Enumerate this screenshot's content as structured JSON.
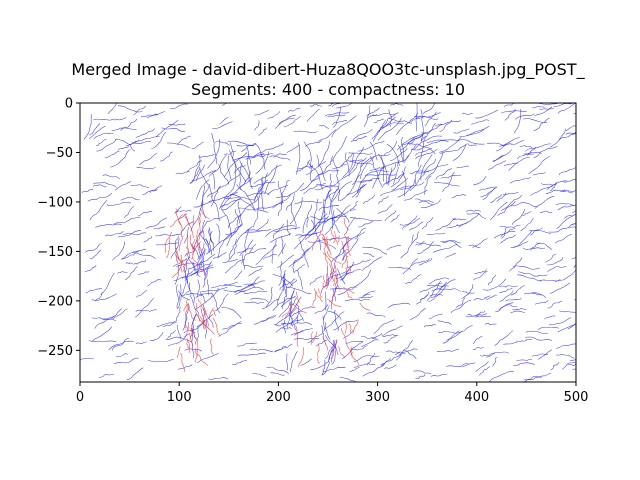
{
  "chart_data": {
    "type": "scatter",
    "title_lines": [
      "Merged Image - david-dibert-Huza8QOO3tc-unsplash.jpg_POST_",
      "Segments: 400 - compactness: 10"
    ],
    "xlabel": "",
    "ylabel": "",
    "xlim": [
      0,
      500
    ],
    "ylim": [
      -282,
      0
    ],
    "x_ticks": [
      0,
      100,
      200,
      300,
      400,
      500
    ],
    "x_tick_labels": [
      "0",
      "100",
      "200",
      "300",
      "400",
      "500"
    ],
    "y_ticks": [
      0,
      -50,
      -100,
      -150,
      -200,
      -250
    ],
    "y_tick_labels": [
      "0",
      "−50",
      "−100",
      "−150",
      "−200",
      "−250"
    ],
    "grid": false,
    "colors": {
      "background_strokes": "#2b2bff",
      "highlight_strokes": "#ff3b2b"
    }
  }
}
